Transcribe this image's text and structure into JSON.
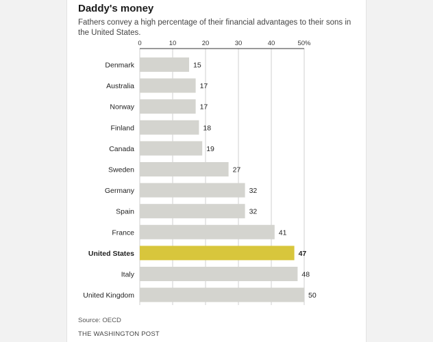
{
  "header": {
    "title": "Daddy's money",
    "subtitle": "Fathers convey a high percentage of their financial advantages to their sons in the United States."
  },
  "footer": {
    "source": "Source: OECD",
    "credit": "THE WASHINGTON POST"
  },
  "colors": {
    "bar": "#d4d4cf",
    "highlight": "#d8c63c",
    "grid": "#cfcfcf",
    "axis": "#333333"
  },
  "chart_data": {
    "type": "bar",
    "orientation": "horizontal",
    "title": "Daddy's money",
    "subtitle": "Fathers convey a high percentage of their financial advantages to their sons in the United States.",
    "xlabel": "",
    "ylabel": "",
    "xlim": [
      0,
      50
    ],
    "ticks": [
      0,
      10,
      20,
      30,
      40,
      50
    ],
    "tick_labels": [
      "0",
      "10",
      "20",
      "30",
      "40",
      "50%"
    ],
    "grid": true,
    "highlight": "United States",
    "categories": [
      "Denmark",
      "Australia",
      "Norway",
      "Finland",
      "Canada",
      "Sweden",
      "Germany",
      "Spain",
      "France",
      "United States",
      "Italy",
      "United Kingdom"
    ],
    "values": [
      15,
      17,
      17,
      18,
      19,
      27,
      32,
      32,
      41,
      47,
      48,
      50
    ]
  }
}
